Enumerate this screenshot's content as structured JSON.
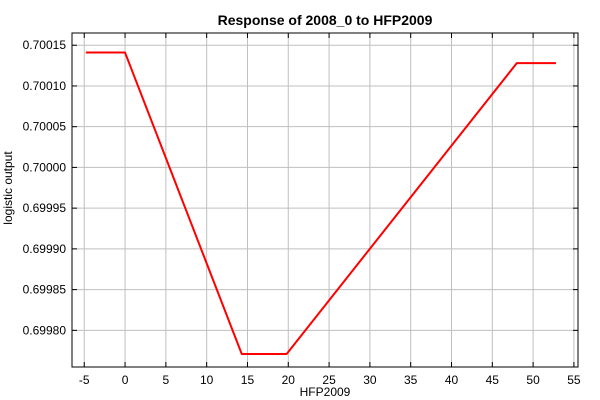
{
  "chart_data": {
    "type": "line",
    "title": "Response of 2008_0 to HFP2009",
    "xlabel": "HFP2009",
    "ylabel": "logistic output",
    "xlim": [
      -6.5,
      55.5
    ],
    "ylim": [
      0.699755,
      0.700165
    ],
    "xticks": [
      -5,
      0,
      5,
      10,
      15,
      20,
      25,
      30,
      35,
      40,
      45,
      50,
      55
    ],
    "xtick_labels": [
      "-5",
      "0",
      "5",
      "10",
      "15",
      "20",
      "25",
      "30",
      "35",
      "40",
      "45",
      "50",
      "55"
    ],
    "yticks": [
      0.6998,
      0.69985,
      0.6999,
      0.69995,
      0.7,
      0.70005,
      0.7001,
      0.70015
    ],
    "ytick_labels": [
      "0.69980",
      "0.69985",
      "0.69990",
      "0.69995",
      "0.70000",
      "0.70005",
      "0.70010",
      "0.70015"
    ],
    "grid": true,
    "series": [
      {
        "color": "#ff0000",
        "x": [
          -4.8,
          0,
          14.3,
          19.8,
          48.0,
          52.8
        ],
        "y": [
          0.700141,
          0.700141,
          0.699771,
          0.699771,
          0.700128,
          0.700128
        ]
      }
    ]
  }
}
